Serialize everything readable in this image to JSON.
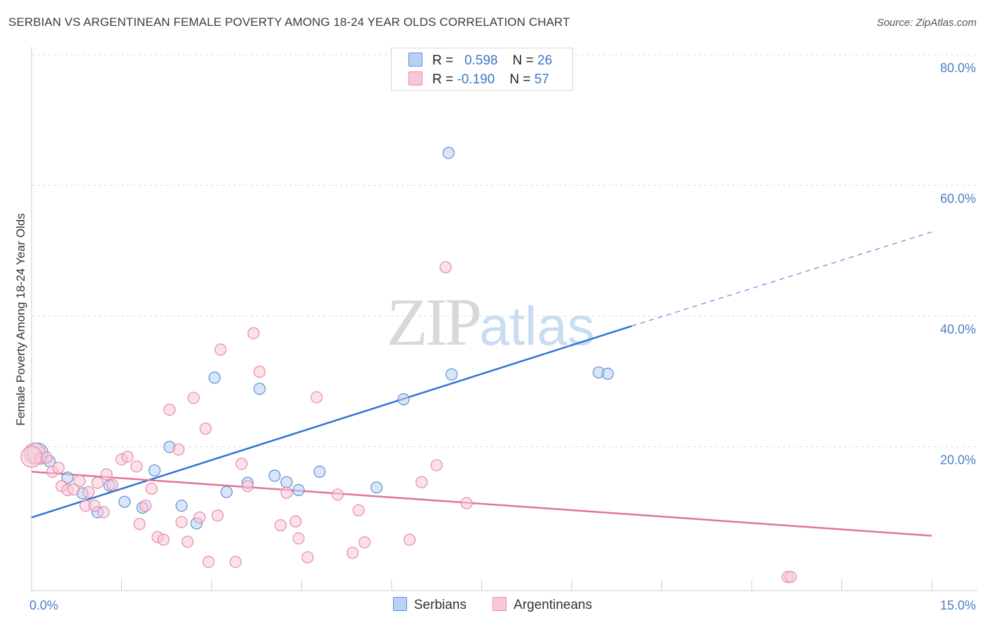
{
  "title": "SERBIAN VS ARGENTINEAN FEMALE POVERTY AMONG 18-24 YEAR OLDS CORRELATION CHART",
  "source": "Source: ZipAtlas.com",
  "watermark": {
    "zip": "ZIP",
    "atlas": "atlas"
  },
  "legend": {
    "rows": [
      {
        "r_label": "R =",
        "r_value": "0.598",
        "n_label": "N =",
        "n_value": "26"
      },
      {
        "r_label": "R =",
        "r_value": "-0.190",
        "n_label": "N =",
        "n_value": "57"
      }
    ]
  },
  "chart_data": {
    "type": "scatter",
    "title": "SERBIAN VS ARGENTINEAN FEMALE POVERTY AMONG 18-24 YEAR OLDS CORRELATION CHART",
    "xlabel": "",
    "ylabel": "Female Poverty Among 18-24 Year Olds",
    "xlim": [
      0,
      15
    ],
    "ylim": [
      0,
      80
    ],
    "x_tick_labels": [
      "0.0%",
      "15.0%"
    ],
    "y_ticks": [
      20,
      40,
      60,
      80
    ],
    "y_tick_labels": [
      "20.0%",
      "40.0%",
      "60.0%",
      "80.0%"
    ],
    "grid": true,
    "legend_position": "top-center",
    "series": [
      {
        "name": "Serbians",
        "color": "#5b8fd6",
        "fill": "#b9d2f3",
        "r": 0.598,
        "n": 26,
        "trend": {
          "x0": 0,
          "y0": 11.2,
          "x1": 10.0,
          "y1": 40.5,
          "dashed_to_x": 15.0,
          "dashed_to_y": 54.9
        },
        "points": [
          [
            0.1,
            21.0
          ],
          [
            0.3,
            19.8
          ],
          [
            0.6,
            17.3
          ],
          [
            0.85,
            14.9
          ],
          [
            1.1,
            12.0
          ],
          [
            1.3,
            16.1
          ],
          [
            1.55,
            13.6
          ],
          [
            1.85,
            12.7
          ],
          [
            2.05,
            18.4
          ],
          [
            2.3,
            22.0
          ],
          [
            2.5,
            13.0
          ],
          [
            2.75,
            10.3
          ],
          [
            3.05,
            32.6
          ],
          [
            3.25,
            15.1
          ],
          [
            3.6,
            16.5
          ],
          [
            3.8,
            30.9
          ],
          [
            4.05,
            17.6
          ],
          [
            4.25,
            16.6
          ],
          [
            4.45,
            15.4
          ],
          [
            4.8,
            18.2
          ],
          [
            5.75,
            15.8
          ],
          [
            6.2,
            29.3
          ],
          [
            6.95,
            67.0
          ],
          [
            7.0,
            33.1
          ],
          [
            9.45,
            33.4
          ],
          [
            9.6,
            33.2
          ]
        ]
      },
      {
        "name": "Argentineans",
        "color": "#e88aa8",
        "fill": "#f8c8d8",
        "r": -0.19,
        "n": 57,
        "trend": {
          "x0": 0,
          "y0": 18.2,
          "x1": 15.0,
          "y1": 8.4
        },
        "points": [
          [
            0.05,
            21.0
          ],
          [
            0.15,
            20.2
          ],
          [
            0.25,
            20.4
          ],
          [
            0.35,
            18.2
          ],
          [
            0.45,
            18.8
          ],
          [
            0.5,
            16.0
          ],
          [
            0.6,
            15.4
          ],
          [
            0.7,
            15.5
          ],
          [
            0.8,
            16.8
          ],
          [
            0.9,
            13.0
          ],
          [
            0.95,
            15.1
          ],
          [
            1.05,
            13.0
          ],
          [
            1.1,
            16.5
          ],
          [
            1.2,
            12.0
          ],
          [
            1.25,
            17.8
          ],
          [
            1.35,
            16.2
          ],
          [
            1.5,
            20.1
          ],
          [
            1.6,
            20.5
          ],
          [
            1.75,
            19.0
          ],
          [
            1.8,
            10.2
          ],
          [
            1.9,
            13.0
          ],
          [
            2.0,
            15.6
          ],
          [
            2.1,
            8.2
          ],
          [
            2.2,
            7.8
          ],
          [
            2.3,
            27.7
          ],
          [
            2.45,
            21.6
          ],
          [
            2.5,
            10.5
          ],
          [
            2.6,
            7.5
          ],
          [
            2.7,
            29.5
          ],
          [
            2.8,
            11.2
          ],
          [
            2.9,
            24.8
          ],
          [
            2.95,
            4.4
          ],
          [
            3.1,
            11.5
          ],
          [
            3.15,
            36.9
          ],
          [
            3.4,
            4.4
          ],
          [
            3.5,
            19.4
          ],
          [
            3.6,
            16.0
          ],
          [
            3.7,
            39.4
          ],
          [
            3.8,
            33.5
          ],
          [
            4.15,
            10.0
          ],
          [
            4.25,
            15.0
          ],
          [
            4.4,
            10.6
          ],
          [
            4.45,
            8.0
          ],
          [
            4.6,
            5.1
          ],
          [
            4.75,
            29.6
          ],
          [
            5.1,
            14.7
          ],
          [
            5.35,
            5.8
          ],
          [
            5.45,
            12.3
          ],
          [
            5.55,
            7.4
          ],
          [
            6.3,
            7.8
          ],
          [
            6.5,
            16.6
          ],
          [
            6.75,
            19.2
          ],
          [
            6.9,
            49.5
          ],
          [
            7.25,
            13.4
          ],
          [
            12.6,
            2.1
          ],
          [
            12.65,
            2.1
          ],
          [
            0.0,
            20.5
          ]
        ]
      }
    ]
  }
}
